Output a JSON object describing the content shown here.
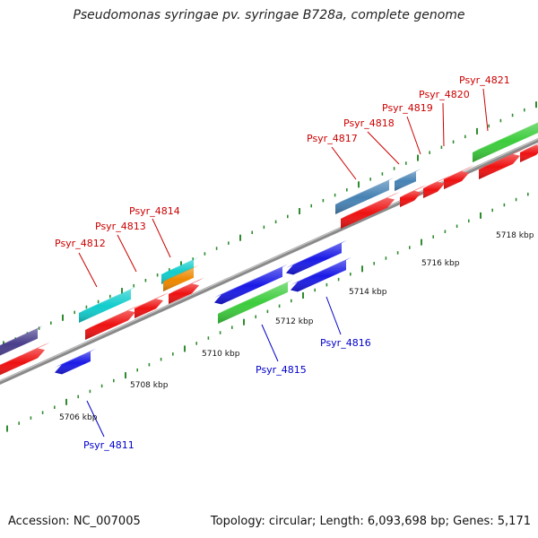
{
  "title": "Pseudomonas syringae pv. syringae B728a, complete genome",
  "footer": {
    "accession": "Accession: NC_007005",
    "topology": "Topology: circular; Length: 6,093,698 bp; Genes: 5,171"
  },
  "colors": {
    "forward_label": "#cc0000",
    "reverse_label": "#0000cc",
    "backbone": "#8a8a8a",
    "tick": "#2e8b2e",
    "cds": "#ee1111",
    "reverse_gene": "#1a1ae6",
    "rna_green": "#3ccc3c",
    "steel_blue": "#4682b4",
    "cyan": "#11cccc",
    "orange": "#ee8800",
    "slate": "#483d8b"
  },
  "scale_labels": [
    "5706 kbp",
    "5708 kbp",
    "5710 kbp",
    "5712 kbp",
    "5714 kbp",
    "5716 kbp",
    "5718 kbp"
  ],
  "gene_labels": {
    "psyr_4811": "Psyr_4811",
    "psyr_4812": "Psyr_4812",
    "psyr_4813": "Psyr_4813",
    "psyr_4814": "Psyr_4814",
    "psyr_4815": "Psyr_4815",
    "psyr_4816": "Psyr_4816",
    "psyr_4817": "Psyr_4817",
    "psyr_4818": "Psyr_4818",
    "psyr_4819": "Psyr_4819",
    "psyr_4820": "Psyr_4820",
    "psyr_4821": "Psyr_4821"
  }
}
